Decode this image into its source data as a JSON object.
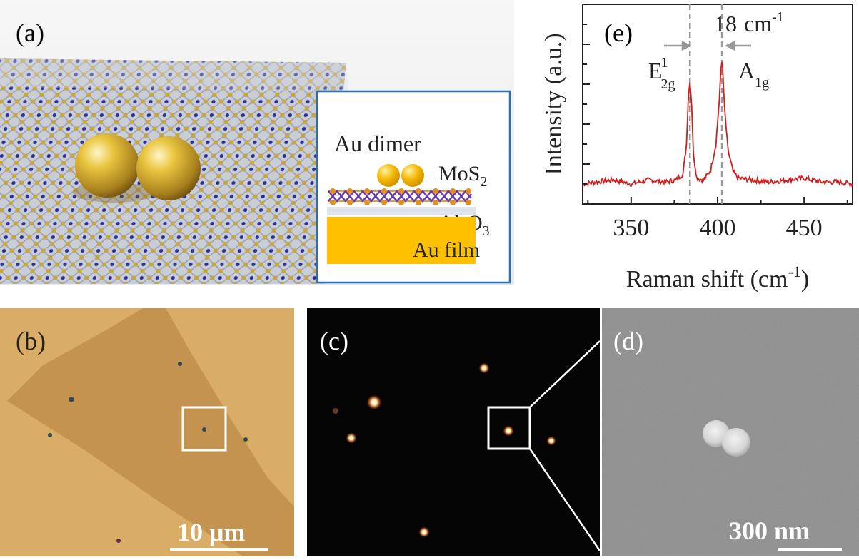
{
  "panels": {
    "a": {
      "label": "(a)",
      "inset": {
        "title": "Au dimer",
        "layers": [
          "MoS",
          "Al",
          "Au film"
        ],
        "mos2": {
          "base": "MoS",
          "sub": "2"
        },
        "al2o3": {
          "base1": "Al",
          "sub1": "2",
          "base2": "O",
          "sub2": "3"
        }
      }
    },
    "b": {
      "label": "(b)",
      "scale_bar": "10 μm"
    },
    "c": {
      "label": "(c)"
    },
    "d": {
      "label": "(d)",
      "scale_bar": "300 nm"
    },
    "e": {
      "label": "(e)",
      "annotation_gap": {
        "value": "18",
        "unit": "cm",
        "sup": "-1"
      },
      "peak_labels": {
        "left": {
          "base": "E",
          "sup": "1",
          "sub": "2g"
        },
        "right": {
          "base": "A",
          "sub": "1g"
        }
      }
    }
  },
  "chart_data": {
    "type": "line",
    "title": "",
    "xlabel": "Raman shift (cm",
    "xlabel_sup": "-1",
    "xlabel_end": ")",
    "ylabel": "Intensity (a.u.)",
    "xlim": [
      322,
      478
    ],
    "ylim": [
      0,
      1
    ],
    "x_ticks": [
      350,
      400,
      450
    ],
    "y_ticks_shown": false,
    "peaks": [
      {
        "x": 384,
        "y": 0.62,
        "width": 1.6
      },
      {
        "x": 402.5,
        "y": 0.72,
        "width": 2.4
      }
    ],
    "baseline": 0.1,
    "reference_lines_x": [
      384,
      402.5
    ],
    "series": [
      {
        "color": "#d11f1f",
        "x": [
          322,
          330,
          340,
          350,
          360,
          370,
          376,
          380,
          382,
          383,
          384,
          385,
          386,
          388,
          392,
          396,
          399,
          401,
          402,
          402.5,
          403,
          404,
          406,
          409,
          412,
          420,
          430,
          440,
          450,
          460,
          470,
          478
        ],
        "y": [
          0.1,
          0.11,
          0.12,
          0.1,
          0.12,
          0.11,
          0.12,
          0.15,
          0.3,
          0.52,
          0.62,
          0.5,
          0.25,
          0.13,
          0.12,
          0.17,
          0.3,
          0.52,
          0.68,
          0.72,
          0.66,
          0.48,
          0.27,
          0.16,
          0.13,
          0.12,
          0.11,
          0.12,
          0.13,
          0.11,
          0.11,
          0.1
        ]
      }
    ]
  }
}
